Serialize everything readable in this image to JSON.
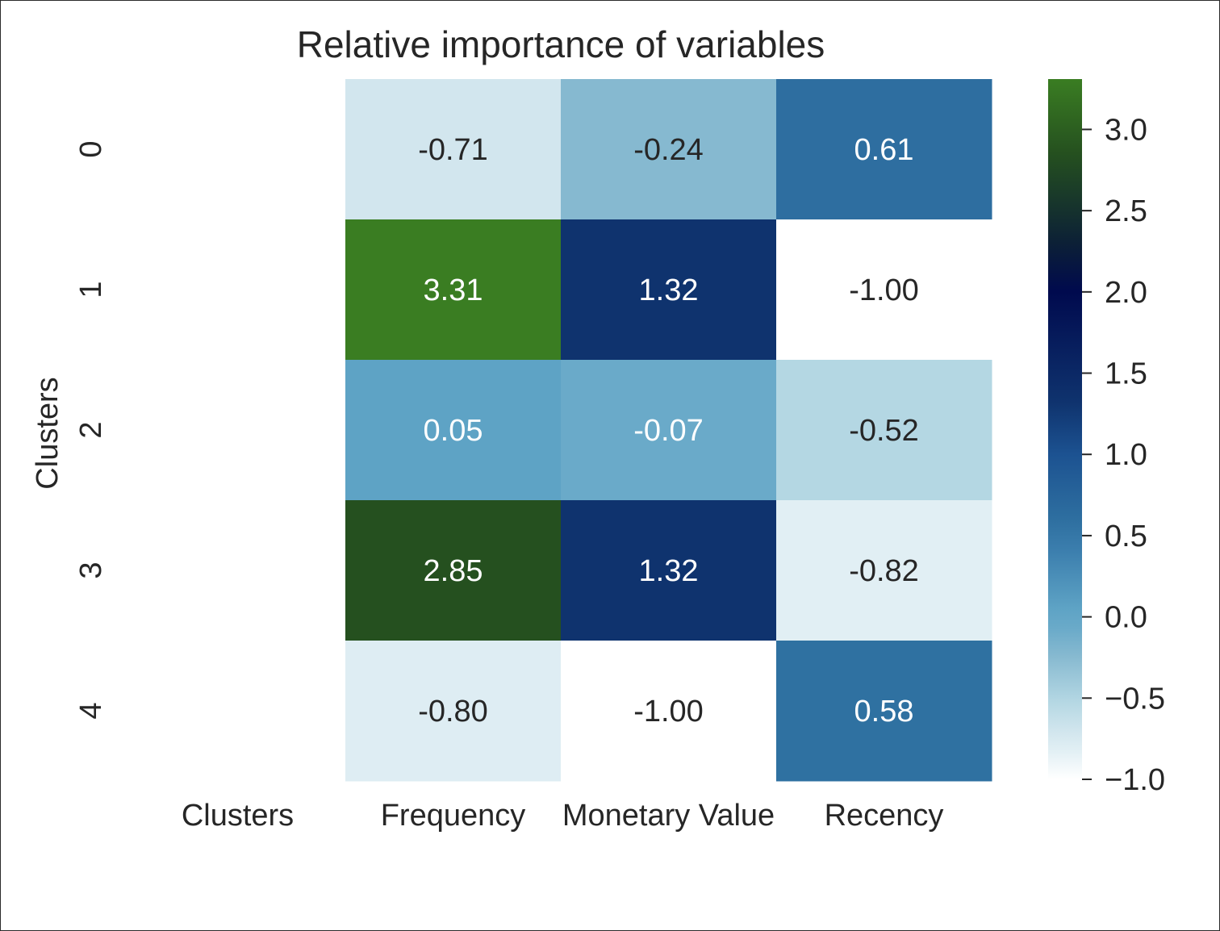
{
  "chart_data": {
    "type": "heatmap",
    "title": "Relative importance of variables",
    "ylabel": "Clusters",
    "xlabel": "",
    "x_categories": [
      "Clusters",
      "Frequency",
      "Monetary Value",
      "Recency"
    ],
    "y_categories": [
      "0",
      "1",
      "2",
      "3",
      "4"
    ],
    "values": [
      [
        null,
        -0.71,
        -0.24,
        0.61
      ],
      [
        null,
        3.31,
        1.32,
        -1.0
      ],
      [
        null,
        0.05,
        -0.07,
        -0.52
      ],
      [
        null,
        2.85,
        1.32,
        -0.82
      ],
      [
        null,
        -0.8,
        -1.0,
        0.58
      ]
    ],
    "value_labels": [
      [
        "",
        "-0.71",
        "-0.24",
        "0.61"
      ],
      [
        "",
        "3.31",
        "1.32",
        "-1.00"
      ],
      [
        "",
        "0.05",
        "-0.07",
        "-0.52"
      ],
      [
        "",
        "2.85",
        "1.32",
        "-0.82"
      ],
      [
        "",
        "-0.80",
        "-1.00",
        "0.58"
      ]
    ],
    "colorbar": {
      "range": [
        -1.0,
        3.31
      ],
      "ticks": [
        3.0,
        2.5,
        2.0,
        1.5,
        1.0,
        0.5,
        0.0,
        -0.5,
        -1.0
      ],
      "tick_labels": [
        "3.0",
        "2.5",
        "2.0",
        "1.5",
        "1.0",
        "0.5",
        "0.0",
        "−0.5",
        "−1.0"
      ],
      "placement": "right"
    },
    "colormap_stops": [
      {
        "value": -1.0,
        "color": "#ffffff"
      },
      {
        "value": -0.82,
        "color": "#e1eff4"
      },
      {
        "value": -0.71,
        "color": "#d2e6ee"
      },
      {
        "value": -0.52,
        "color": "#b4d7e3"
      },
      {
        "value": -0.24,
        "color": "#86b9d0"
      },
      {
        "value": -0.07,
        "color": "#6aaac9"
      },
      {
        "value": 0.05,
        "color": "#5ea3c5"
      },
      {
        "value": 0.4,
        "color": "#3c7fae"
      },
      {
        "value": 0.6,
        "color": "#2e6fa0"
      },
      {
        "value": 1.0,
        "color": "#1c5291"
      },
      {
        "value": 1.32,
        "color": "#0f336e"
      },
      {
        "value": 2.0,
        "color": "#000a4e"
      },
      {
        "value": 2.3,
        "color": "#0c2036"
      },
      {
        "value": 2.85,
        "color": "#25501f"
      },
      {
        "value": 3.31,
        "color": "#3a7d22"
      }
    ],
    "text_color_dark": "#262626",
    "text_color_light": "#ffffff",
    "text_light_threshold": -0.15,
    "grid": false
  }
}
